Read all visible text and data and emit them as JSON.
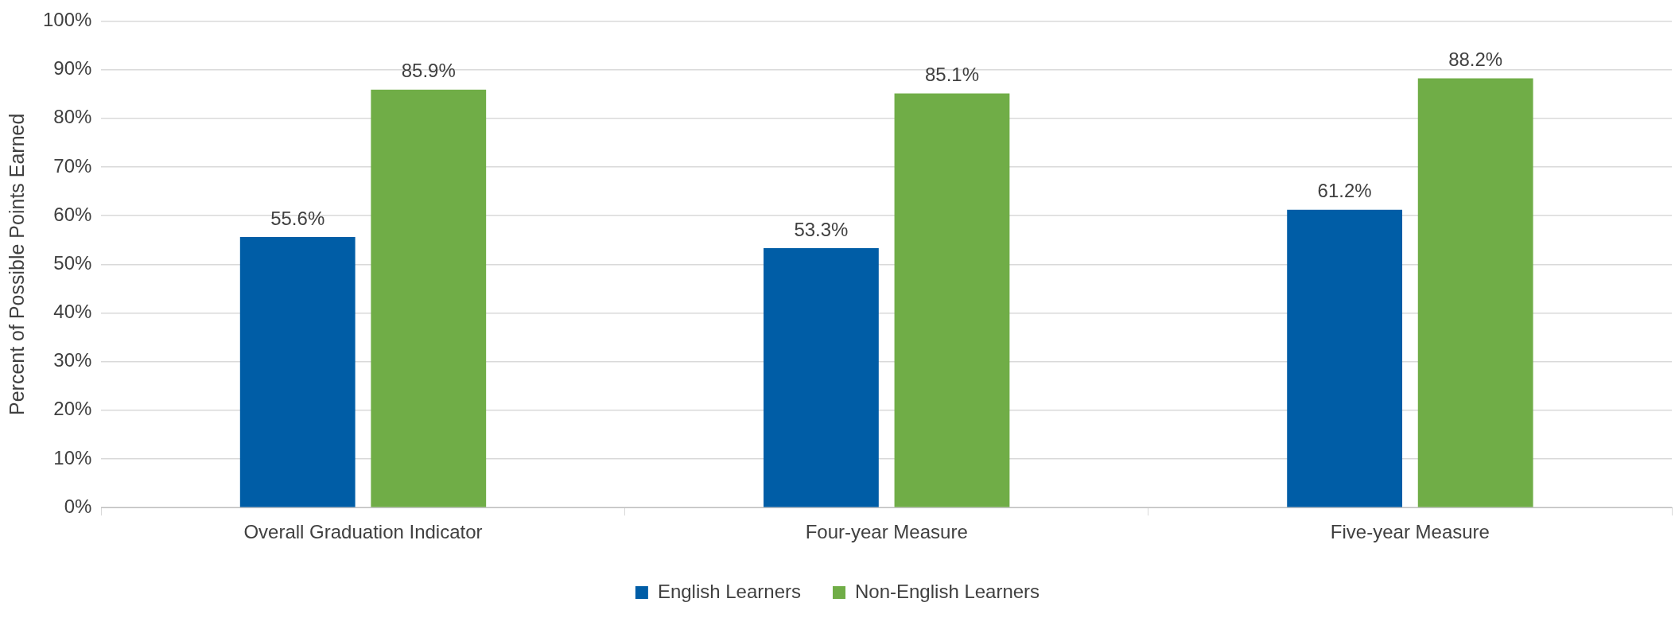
{
  "chart_data": {
    "type": "bar",
    "ylabel": "Percent of Possible Points Earned",
    "categories": [
      "Overall Graduation Indicator",
      "Four-year Measure",
      "Five-year Measure"
    ],
    "series": [
      {
        "name": "English Learners",
        "color": "#005da6",
        "values": [
          55.6,
          53.3,
          61.2
        ],
        "value_labels": [
          "55.6%",
          "53.3%",
          "61.2%"
        ]
      },
      {
        "name": "Non-English Learners",
        "color": "#70ad47",
        "values": [
          85.9,
          85.1,
          88.2
        ],
        "value_labels": [
          "85.9%",
          "85.1%",
          "88.2%"
        ]
      }
    ],
    "ylim": [
      0,
      100
    ],
    "yticks": [
      {
        "value": 0,
        "label": "0%"
      },
      {
        "value": 10,
        "label": "10%"
      },
      {
        "value": 20,
        "label": "20%"
      },
      {
        "value": 30,
        "label": "30%"
      },
      {
        "value": 40,
        "label": "40%"
      },
      {
        "value": 50,
        "label": "50%"
      },
      {
        "value": 60,
        "label": "60%"
      },
      {
        "value": 70,
        "label": "70%"
      },
      {
        "value": 80,
        "label": "80%"
      },
      {
        "value": 90,
        "label": "90%"
      },
      {
        "value": 100,
        "label": "100%"
      }
    ],
    "grid": "y",
    "legend": "bottom"
  }
}
